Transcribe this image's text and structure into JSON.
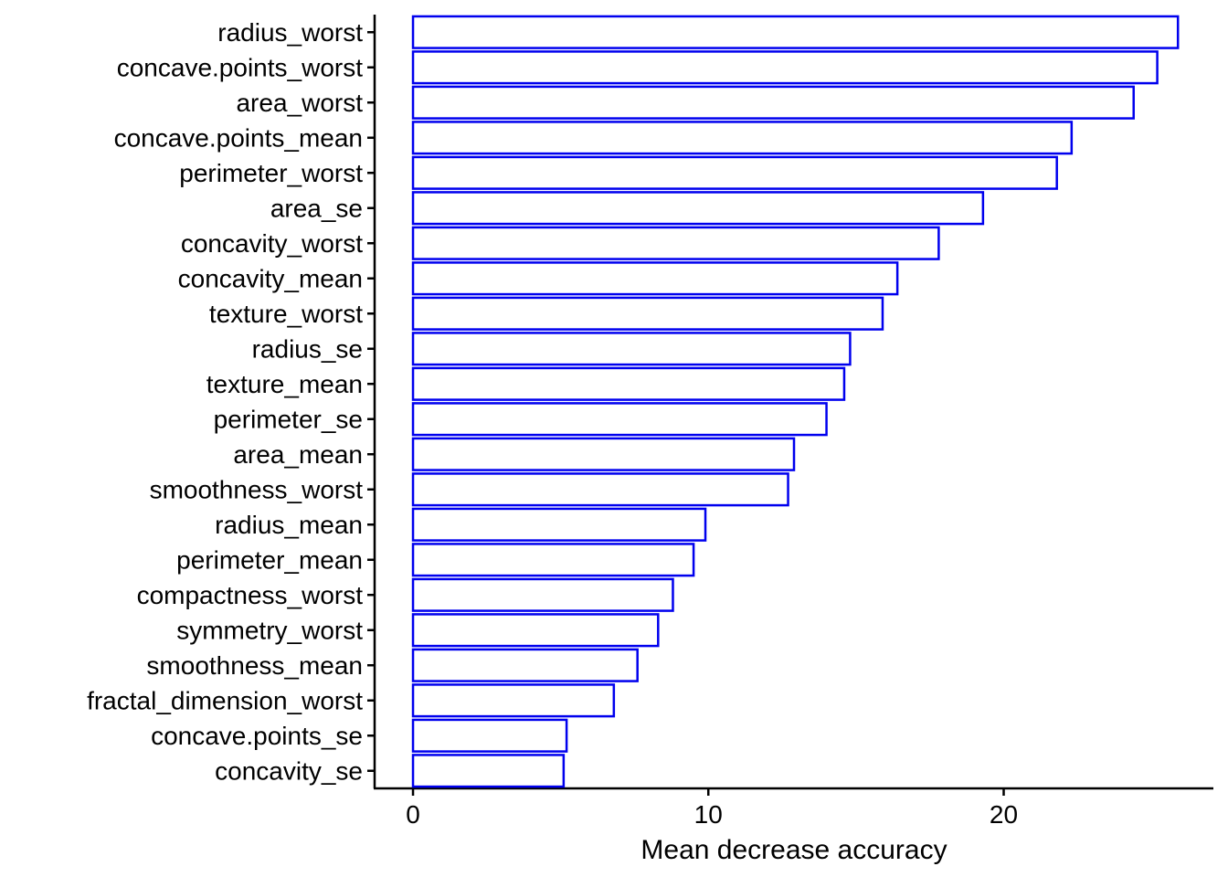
{
  "chart_data": {
    "type": "bar",
    "orientation": "horizontal",
    "title": "",
    "xlabel": "Mean decrease accuracy",
    "ylabel": "",
    "xlim": [
      -1.3,
      27.1
    ],
    "xticks": [
      0,
      10,
      20
    ],
    "grid": false,
    "legend": "none",
    "bar_outline_color": "#0000ee",
    "bar_fill_color": "#ffffff",
    "categories": [
      "radius_worst",
      "concave.points_worst",
      "area_worst",
      "concave.points_mean",
      "perimeter_worst",
      "area_se",
      "concavity_worst",
      "concavity_mean",
      "texture_worst",
      "radius_se",
      "texture_mean",
      "perimeter_se",
      "area_mean",
      "smoothness_worst",
      "radius_mean",
      "perimeter_mean",
      "compactness_worst",
      "symmetry_worst",
      "smoothness_mean",
      "fractal_dimension_worst",
      "concave.points_se",
      "concavity_se"
    ],
    "values": [
      25.9,
      25.2,
      24.4,
      22.3,
      21.8,
      19.3,
      17.8,
      16.4,
      15.9,
      14.8,
      14.6,
      14.0,
      12.9,
      12.7,
      9.9,
      9.5,
      8.8,
      8.3,
      7.6,
      6.8,
      5.2,
      5.1
    ]
  }
}
